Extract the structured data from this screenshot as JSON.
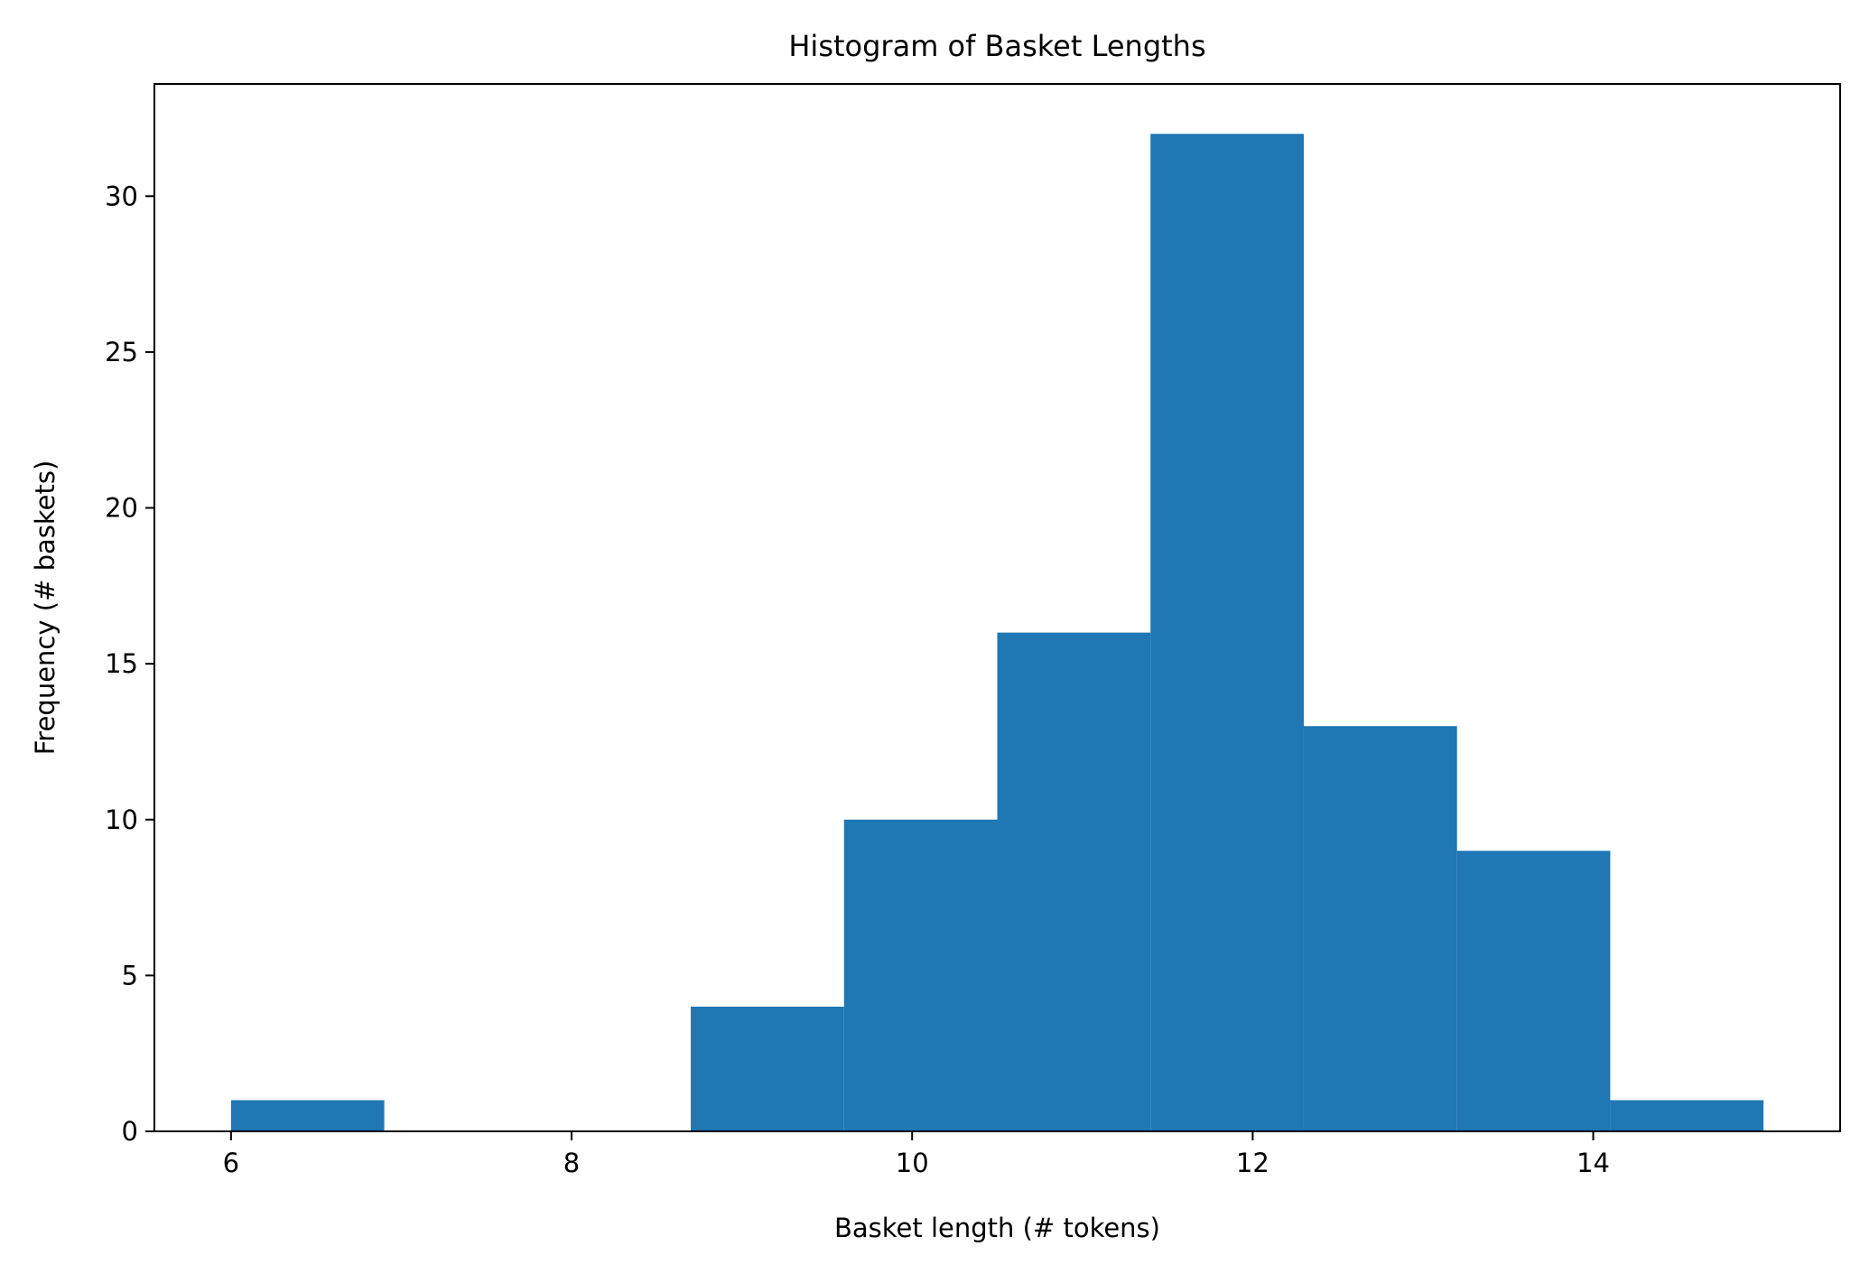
{
  "chart_data": {
    "type": "bar",
    "title": "Histogram of Basket Lengths",
    "xlabel": "Basket length (# tokens)",
    "ylabel": "Frequency (# baskets)",
    "bin_edges": [
      6.0,
      6.9,
      7.8,
      8.7,
      9.6,
      10.5,
      11.4,
      12.3,
      13.2,
      14.1,
      15.0
    ],
    "values": [
      1,
      0,
      0,
      4,
      10,
      16,
      32,
      13,
      9,
      1
    ],
    "xlim": [
      5.55,
      15.45
    ],
    "ylim": [
      0,
      33.6
    ],
    "xticks": [
      6,
      8,
      10,
      12,
      14
    ],
    "yticks": [
      0,
      5,
      10,
      15,
      20,
      25,
      30
    ],
    "bar_color": "#1f77b4",
    "grid": false,
    "legend": "none"
  }
}
